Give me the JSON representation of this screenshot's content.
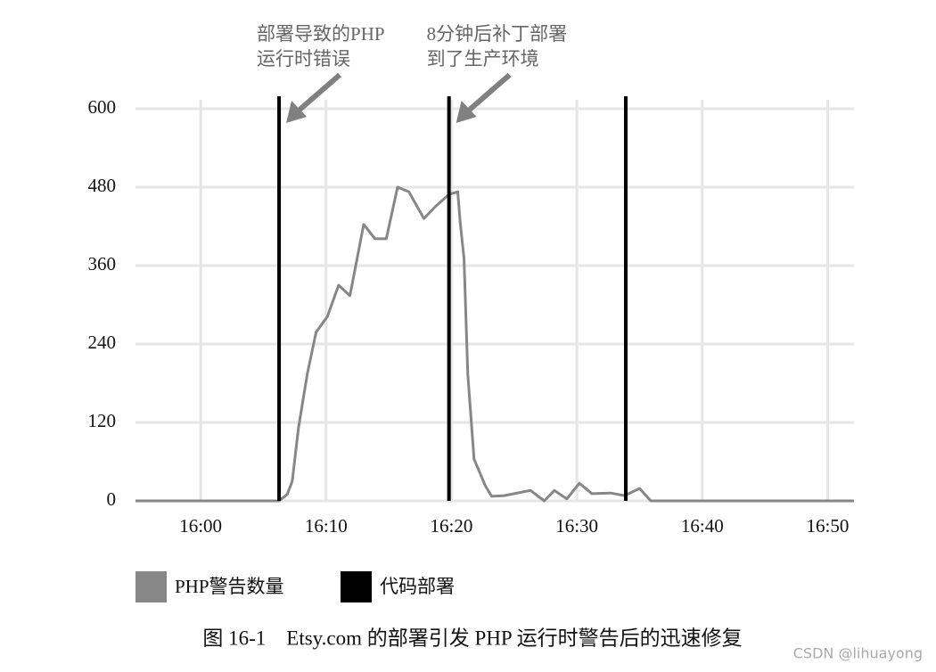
{
  "chart_data": {
    "type": "line",
    "annotations": [
      {
        "lines": [
          "部署导致的PHP",
          "运行时错误"
        ],
        "x": 6.25
      },
      {
        "lines": [
          "8分钟后补丁部署",
          "到了生产环境"
        ],
        "x": 19.8
      }
    ],
    "x": [
      -5.2,
      6.25,
      6.9,
      7.3,
      7.8,
      8.5,
      9.2,
      10.1,
      11.0,
      11.9,
      13.0,
      13.9,
      14.8,
      15.7,
      16.6,
      17.8,
      18.7,
      19.8,
      20.5,
      20.7,
      21.0,
      21.3,
      21.8,
      22.7,
      23.2,
      24.2,
      26.3,
      27.4,
      28.2,
      29.2,
      30.2,
      31.2,
      32.7,
      33.8,
      35.0,
      35.9,
      52.1
    ],
    "series": [
      {
        "name": "PHP警告数量",
        "color": "#878787",
        "values": [
          0,
          0,
          10,
          30,
          112,
          194,
          258,
          282,
          330,
          314,
          423,
          401,
          401,
          480,
          473,
          432,
          450,
          469,
          473,
          425,
          371,
          194,
          64,
          23,
          7,
          8,
          16,
          0,
          16,
          3,
          27,
          11,
          12,
          8,
          19,
          0,
          0
        ]
      }
    ],
    "deployments": {
      "name": "代码部署",
      "color": "#000000",
      "x": [
        6.25,
        19.8,
        33.9
      ]
    },
    "xlim": [
      -5.2,
      52.1
    ],
    "xticks": [
      {
        "value": 0,
        "label": "16:00"
      },
      {
        "value": 10,
        "label": "16:10"
      },
      {
        "value": 20,
        "label": "16:20"
      },
      {
        "value": 30,
        "label": "16:30"
      },
      {
        "value": 40,
        "label": "16:40"
      },
      {
        "value": 50,
        "label": "16:50"
      }
    ],
    "ylim": [
      0,
      600
    ],
    "yticks": [
      0,
      120,
      240,
      360,
      480,
      600
    ],
    "grid": true,
    "caption": "图 16-1　Etsy.com 的部署引发 PHP 运行时警告后的迅速修复",
    "watermark": "CSDN @lihuayong"
  }
}
